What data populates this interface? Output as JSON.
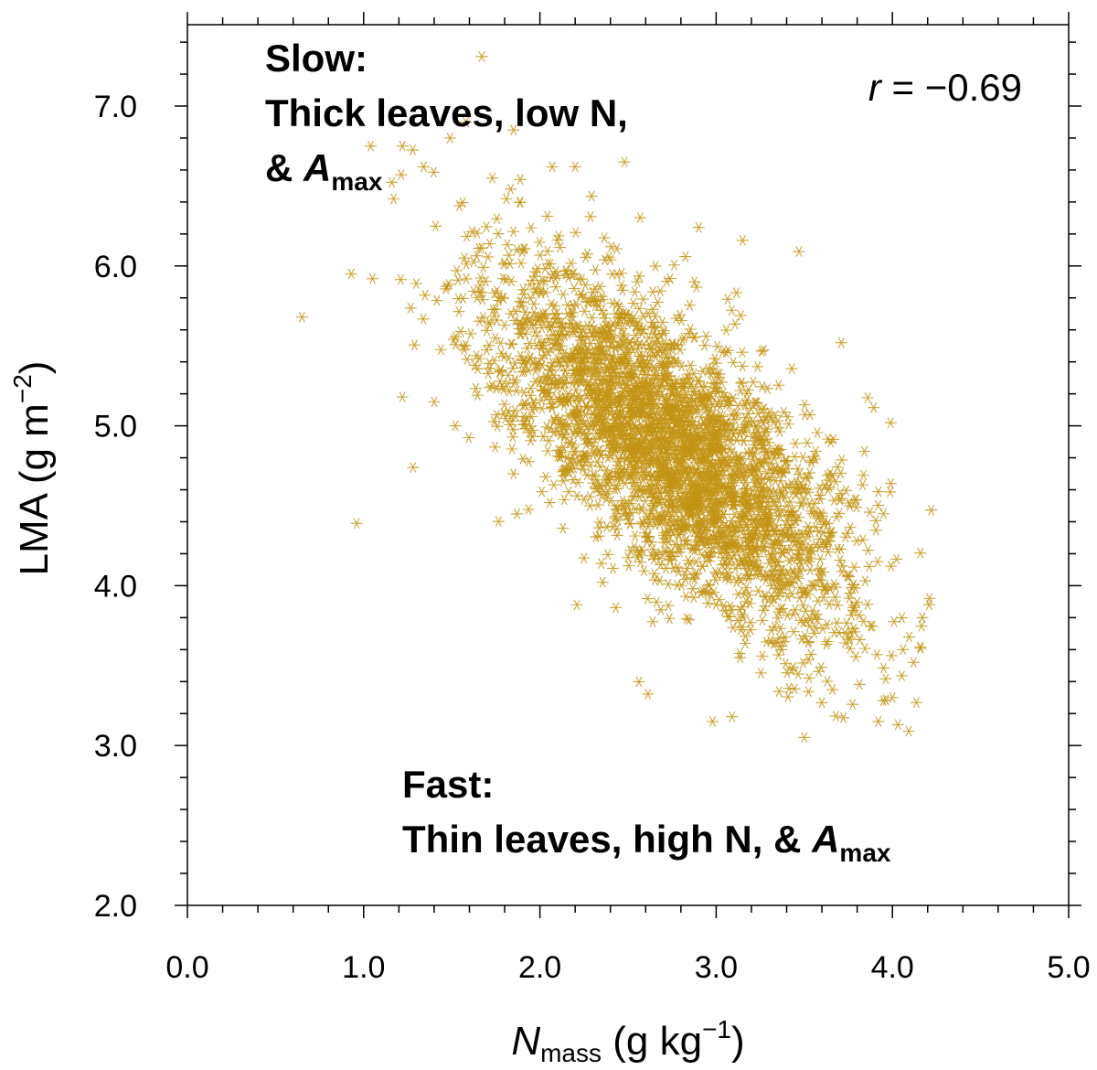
{
  "chart_data": {
    "type": "scatter",
    "xlim": [
      0.0,
      5.0
    ],
    "ylim": [
      2.0,
      7.5
    ],
    "x_ticks": [
      "0.0",
      "1.0",
      "2.0",
      "3.0",
      "4.0",
      "5.0"
    ],
    "y_ticks": [
      "2.0",
      "3.0",
      "4.0",
      "5.0",
      "6.0",
      "7.0"
    ],
    "xlabel": {
      "main": "N",
      "sub": "mass",
      "unit": " (g kg",
      "sup": "−1",
      "close": ")"
    },
    "ylabel": {
      "main": "LMA (g m",
      "sup": "−2",
      "close": ")"
    },
    "marker": "asterisk",
    "marker_color": "#C39415",
    "cloud": {
      "count": 3200,
      "x_mean": 2.75,
      "y_mean": 4.85,
      "x_sd": 0.5,
      "y_sd": 0.55,
      "correlation": -0.69
    },
    "outlier_points": [
      [
        0.65,
        5.68
      ],
      [
        0.93,
        5.95
      ],
      [
        1.05,
        5.92
      ],
      [
        0.96,
        4.39
      ],
      [
        1.67,
        7.31
      ],
      [
        1.04,
        6.75
      ],
      [
        1.22,
        6.75
      ],
      [
        1.28,
        4.74
      ],
      [
        1.17,
        6.42
      ],
      [
        1.34,
        6.62
      ],
      [
        1.49,
        6.8
      ],
      [
        1.58,
        6.9
      ],
      [
        1.85,
        6.85
      ],
      [
        2.07,
        6.62
      ],
      [
        2.2,
        6.62
      ],
      [
        2.48,
        6.65
      ],
      [
        3.15,
        6.16
      ],
      [
        3.47,
        6.09
      ],
      [
        3.71,
        5.52
      ],
      [
        3.95,
        4.45
      ],
      [
        4.21,
        3.92
      ],
      [
        4.12,
        3.52
      ],
      [
        3.5,
        3.05
      ],
      [
        2.98,
        3.15
      ],
      [
        3.09,
        3.18
      ],
      [
        3.92,
        3.15
      ],
      [
        4.0,
        3.3
      ],
      [
        1.22,
        5.18
      ],
      [
        1.4,
        5.15
      ],
      [
        1.52,
        5.0
      ],
      [
        3.66,
        3.35
      ],
      [
        4.06,
        3.6
      ],
      [
        1.73,
        6.55
      ],
      [
        1.81,
        6.42
      ],
      [
        2.21,
        3.88
      ]
    ],
    "annotations": {
      "slow_title": "Slow:",
      "slow_line2": "Thick leaves, low N,",
      "slow_line3_prefix": "& ",
      "slow_line3_italic": "A",
      "slow_line3_sub": "max",
      "fast_title": "Fast:",
      "fast_line2_prefix": "Thin leaves, high N, & ",
      "fast_line2_italic": "A",
      "fast_line2_sub": "max",
      "r_label": "r",
      "r_value": " = −0.69"
    }
  }
}
